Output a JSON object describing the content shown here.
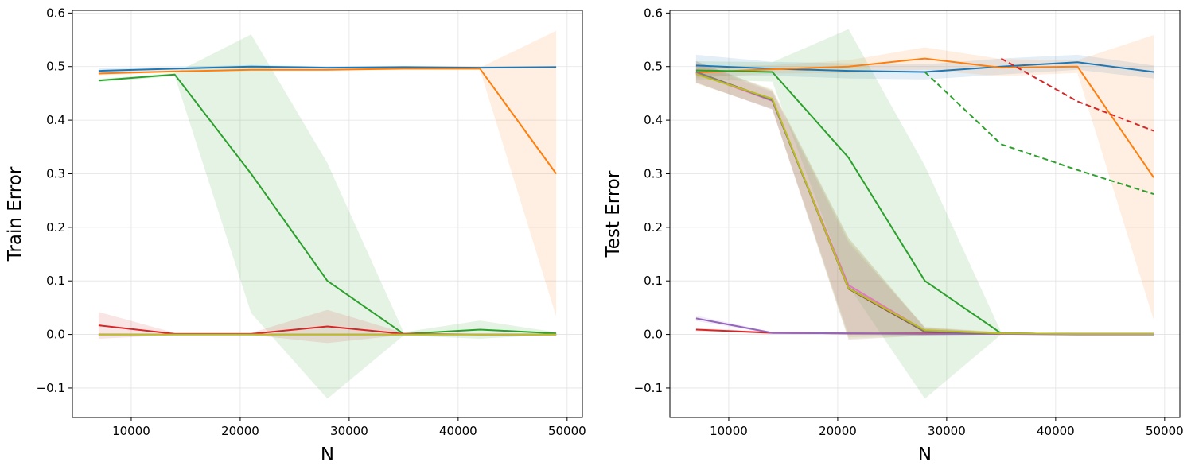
{
  "chart_data": [
    {
      "type": "line",
      "title": "",
      "xlabel": "N",
      "ylabel": "Train Error",
      "xlim": [
        4600,
        51400
      ],
      "ylim": [
        -0.155,
        0.605
      ],
      "xticks": [
        10000,
        20000,
        30000,
        40000,
        50000
      ],
      "yticks": [
        -0.1,
        0.0,
        0.1,
        0.2,
        0.3,
        0.4,
        0.5,
        0.6
      ],
      "grid": true,
      "x": [
        7000,
        14000,
        21000,
        28000,
        35000,
        42000,
        49000
      ],
      "series": [
        {
          "name": "blue",
          "color": "#1f77b4",
          "values": [
            0.492,
            0.496,
            0.5,
            0.498,
            0.499,
            0.498,
            0.499
          ],
          "lower": [
            0.486,
            0.493,
            0.497,
            0.496,
            0.497,
            0.496,
            0.497
          ],
          "upper": [
            0.498,
            0.499,
            0.503,
            0.5,
            0.501,
            0.5,
            0.501
          ]
        },
        {
          "name": "orange",
          "color": "#ff7f0e",
          "values": [
            0.487,
            0.491,
            0.494,
            0.494,
            0.496,
            0.496,
            0.3
          ],
          "lower": [
            0.484,
            0.489,
            0.492,
            0.492,
            0.494,
            0.494,
            0.033
          ],
          "upper": [
            0.49,
            0.493,
            0.496,
            0.496,
            0.498,
            0.498,
            0.567
          ]
        },
        {
          "name": "green",
          "color": "#2ca02c",
          "values": [
            0.474,
            0.485,
            0.3,
            0.1,
            0.001,
            0.009,
            0.002
          ],
          "lower": [
            0.471,
            0.482,
            0.04,
            -0.12,
            -0.002,
            -0.008,
            0.0
          ],
          "upper": [
            0.477,
            0.488,
            0.56,
            0.32,
            0.004,
            0.026,
            0.004
          ]
        },
        {
          "name": "red",
          "color": "#d62728",
          "values": [
            0.017,
            0.001,
            0.001,
            0.015,
            0.001,
            0.0,
            0.0
          ],
          "lower": [
            -0.008,
            -0.001,
            -0.001,
            -0.016,
            -0.001,
            -0.001,
            -0.001
          ],
          "upper": [
            0.042,
            0.003,
            0.003,
            0.046,
            0.003,
            0.001,
            0.001
          ]
        },
        {
          "name": "purple",
          "color": "#9467bd",
          "values": [
            0.0,
            0.0,
            0.0,
            0.0,
            0.0,
            0.0,
            0.0
          ],
          "lower": [
            -0.002,
            -0.001,
            -0.001,
            -0.001,
            -0.001,
            -0.001,
            -0.001
          ],
          "upper": [
            0.002,
            0.001,
            0.001,
            0.001,
            0.001,
            0.001,
            0.001
          ]
        },
        {
          "name": "olive",
          "color": "#bcbd22",
          "values": [
            0.0,
            0.0,
            0.0,
            0.0,
            0.0,
            0.0,
            0.0
          ],
          "lower": [
            -0.002,
            -0.001,
            -0.001,
            -0.001,
            -0.001,
            -0.001,
            -0.001
          ],
          "upper": [
            0.002,
            0.001,
            0.001,
            0.001,
            0.001,
            0.001,
            0.001
          ]
        }
      ]
    },
    {
      "type": "line",
      "title": "",
      "xlabel": "N",
      "ylabel": "Test Error",
      "xlim": [
        4600,
        51400
      ],
      "ylim": [
        -0.155,
        0.605
      ],
      "xticks": [
        10000,
        20000,
        30000,
        40000,
        50000
      ],
      "yticks": [
        -0.1,
        0.0,
        0.1,
        0.2,
        0.3,
        0.4,
        0.5,
        0.6
      ],
      "grid": true,
      "x": [
        7000,
        14000,
        21000,
        28000,
        35000,
        42000,
        49000
      ],
      "series": [
        {
          "name": "blue",
          "color": "#1f77b4",
          "values": [
            0.502,
            0.496,
            0.492,
            0.49,
            0.5,
            0.508,
            0.49
          ],
          "lower": [
            0.482,
            0.483,
            0.478,
            0.476,
            0.485,
            0.494,
            0.478
          ],
          "upper": [
            0.522,
            0.509,
            0.506,
            0.504,
            0.515,
            0.522,
            0.502
          ]
        },
        {
          "name": "orange",
          "color": "#ff7f0e",
          "values": [
            0.489,
            0.495,
            0.5,
            0.515,
            0.498,
            0.5,
            0.293
          ],
          "lower": [
            0.479,
            0.487,
            0.488,
            0.494,
            0.482,
            0.488,
            0.027
          ],
          "upper": [
            0.499,
            0.503,
            0.512,
            0.536,
            0.514,
            0.512,
            0.559
          ]
        },
        {
          "name": "green",
          "color": "#2ca02c",
          "values": [
            0.493,
            0.49,
            0.33,
            0.1,
            0.002,
            0.001,
            0.001
          ],
          "lower": [
            0.476,
            0.472,
            0.09,
            -0.12,
            0.0,
            0.0,
            0.0
          ],
          "upper": [
            0.51,
            0.508,
            0.57,
            0.315,
            0.004,
            0.002,
            0.002
          ]
        },
        {
          "name": "red",
          "color": "#d62728",
          "values": [
            0.009,
            0.003,
            0.002,
            0.002,
            0.001,
            0.001,
            0.001
          ],
          "lower": [
            0.006,
            0.001,
            0.001,
            0.001,
            0.0,
            0.0,
            0.0
          ],
          "upper": [
            0.012,
            0.005,
            0.003,
            0.003,
            0.002,
            0.002,
            0.002
          ]
        },
        {
          "name": "purple",
          "color": "#9467bd",
          "values": [
            0.03,
            0.003,
            0.002,
            0.001,
            0.001,
            0.0,
            0.0
          ],
          "lower": [
            0.025,
            0.001,
            0.001,
            0.0,
            0.0,
            0.0,
            0.0
          ],
          "upper": [
            0.035,
            0.005,
            0.003,
            0.002,
            0.002,
            0.001,
            0.001
          ]
        },
        {
          "name": "brown",
          "color": "#8c564b",
          "values": [
            0.49,
            0.438,
            0.085,
            0.005,
            0.002,
            0.001,
            0.001
          ],
          "lower": [
            0.47,
            0.42,
            -0.01,
            -0.002,
            0.0,
            0.0,
            0.0
          ],
          "upper": [
            0.51,
            0.456,
            0.18,
            0.012,
            0.004,
            0.002,
            0.002
          ]
        },
        {
          "name": "pink",
          "color": "#e377c2",
          "values": [
            0.488,
            0.436,
            0.092,
            0.007,
            0.002,
            0.001,
            0.001
          ],
          "lower": [
            0.47,
            0.42,
            0.0,
            -0.002,
            0.0,
            0.0,
            0.0
          ],
          "upper": [
            0.506,
            0.452,
            0.17,
            0.014,
            0.004,
            0.002,
            0.002
          ]
        },
        {
          "name": "gray",
          "color": "#7f7f7f",
          "values": [
            0.49,
            0.437,
            0.087,
            0.006,
            0.002,
            0.001,
            0.001
          ],
          "lower": [
            0.47,
            0.42,
            -0.005,
            -0.002,
            0.0,
            0.0,
            0.0
          ],
          "upper": [
            0.51,
            0.454,
            0.175,
            0.012,
            0.004,
            0.002,
            0.002
          ]
        },
        {
          "name": "olive",
          "color": "#bcbd22",
          "values": [
            0.486,
            0.44,
            0.086,
            0.008,
            0.002,
            0.001,
            0.001
          ],
          "lower": [
            0.468,
            0.422,
            -0.008,
            -0.002,
            0.0,
            0.0,
            0.0
          ],
          "upper": [
            0.504,
            0.458,
            0.18,
            0.014,
            0.004,
            0.002,
            0.002
          ]
        },
        {
          "name": "green-dashed",
          "color": "#2ca02c",
          "dashed": true,
          "x": [
            28000,
            35000,
            42000,
            49000
          ],
          "values": [
            0.49,
            0.355,
            0.307,
            0.262
          ]
        },
        {
          "name": "red-dashed",
          "color": "#d62728",
          "dashed": true,
          "x": [
            35000,
            42000,
            49000
          ],
          "values": [
            0.515,
            0.435,
            0.38
          ]
        }
      ]
    }
  ]
}
